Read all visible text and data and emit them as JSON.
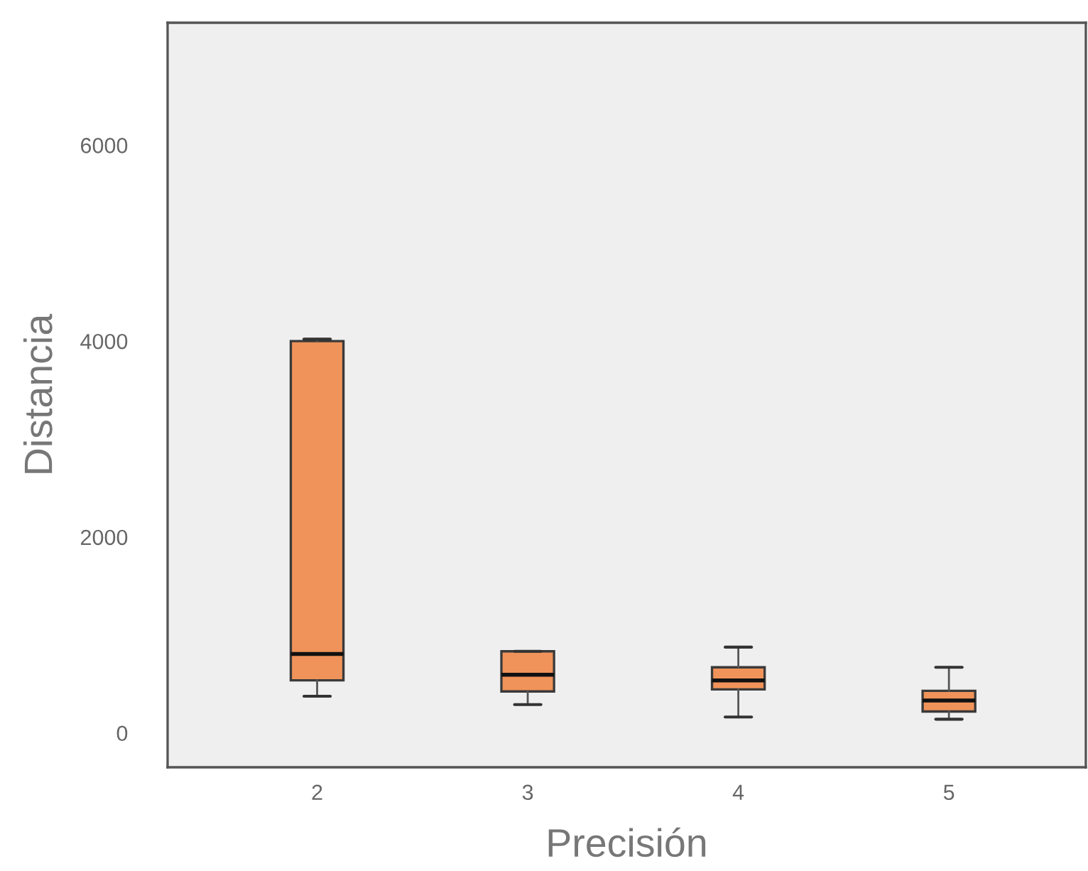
{
  "chart_data": {
    "type": "box",
    "xlabel": "Precisión",
    "ylabel": "Distancia",
    "categories": [
      "2",
      "3",
      "4",
      "5"
    ],
    "boxes": [
      {
        "low": 375,
        "q1": 537,
        "median": 806,
        "q3": 4000,
        "high": 4020
      },
      {
        "low": 290,
        "q1": 424,
        "median": 594,
        "q3": 834,
        "high": 834
      },
      {
        "low": 163,
        "q1": 445,
        "median": 537,
        "q3": 671,
        "high": 876
      },
      {
        "low": 141,
        "q1": 219,
        "median": 332,
        "q3": 431,
        "high": 671
      }
    ],
    "color": "#f0935a",
    "ylim": [
      -350,
      7250
    ],
    "yticks": [
      0,
      2000,
      4000,
      6000
    ],
    "grid": false
  }
}
